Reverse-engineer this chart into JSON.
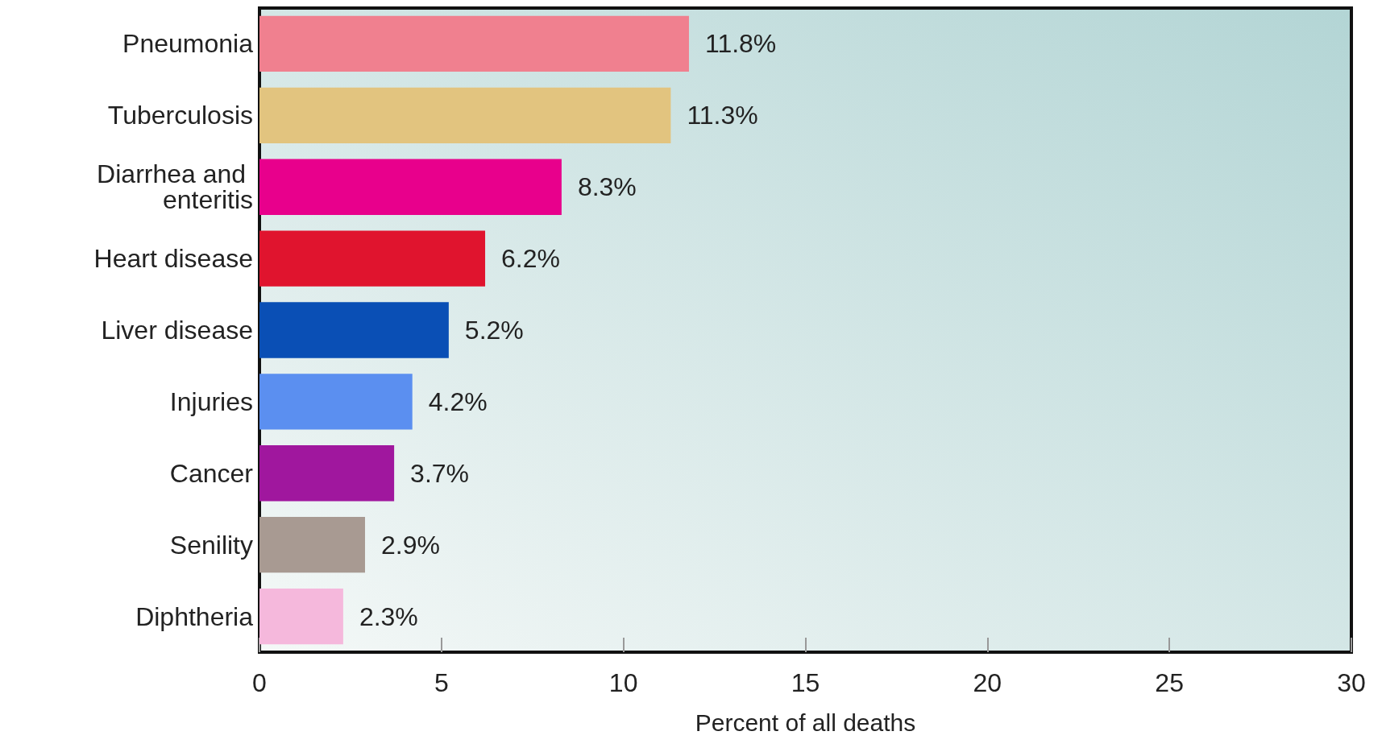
{
  "chart_data": {
    "type": "bar",
    "orientation": "horizontal",
    "xlabel": "Percent of all deaths",
    "categories": [
      "Pneumonia",
      "Tuberculosis",
      "Diarrhea and enteritis",
      "Heart disease",
      "Liver disease",
      "Injuries",
      "Cancer",
      "Senility",
      "Diphtheria"
    ],
    "values": [
      11.8,
      11.3,
      8.3,
      6.2,
      5.2,
      4.2,
      3.7,
      2.9,
      2.3
    ],
    "colors": [
      "#f0808f",
      "#e2c47f",
      "#e8008c",
      "#e0142e",
      "#0a4fb5",
      "#5b8ff0",
      "#a0179e",
      "#a89a92",
      "#f5b8dc"
    ],
    "value_labels": [
      "11.8%",
      "11.3%",
      "8.3%",
      "6.2%",
      "5.2%",
      "4.2%",
      "3.7%",
      "2.9%",
      "2.3%"
    ],
    "xlim": [
      0,
      30
    ],
    "xticks": [
      0,
      5,
      10,
      15,
      20,
      25,
      30
    ]
  }
}
